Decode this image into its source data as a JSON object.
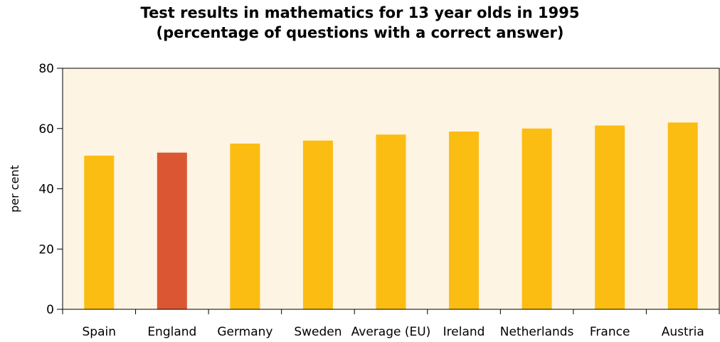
{
  "chart_data": {
    "type": "bar",
    "title": "Test results in mathematics for 13 year olds in 1995",
    "subtitle": "(percentage of questions with a correct answer)",
    "xlabel": "",
    "ylabel": "per cent",
    "ylim": [
      0,
      80
    ],
    "yticks": [
      "0",
      "20",
      "40",
      "60",
      "80"
    ],
    "categories": [
      "Spain",
      "England",
      "Germany",
      "Sweden",
      "Average (EU)",
      "Ireland",
      "Netherlands",
      "France",
      "Austria"
    ],
    "values": [
      51,
      52,
      55,
      56,
      58,
      59,
      60,
      61,
      62
    ],
    "highlight": "England",
    "grid": false,
    "colors": {
      "plot_background": "#fdf4e3",
      "bar": "#fbbd12",
      "highlight_bar": "#db5733",
      "axis": "#000000"
    }
  }
}
